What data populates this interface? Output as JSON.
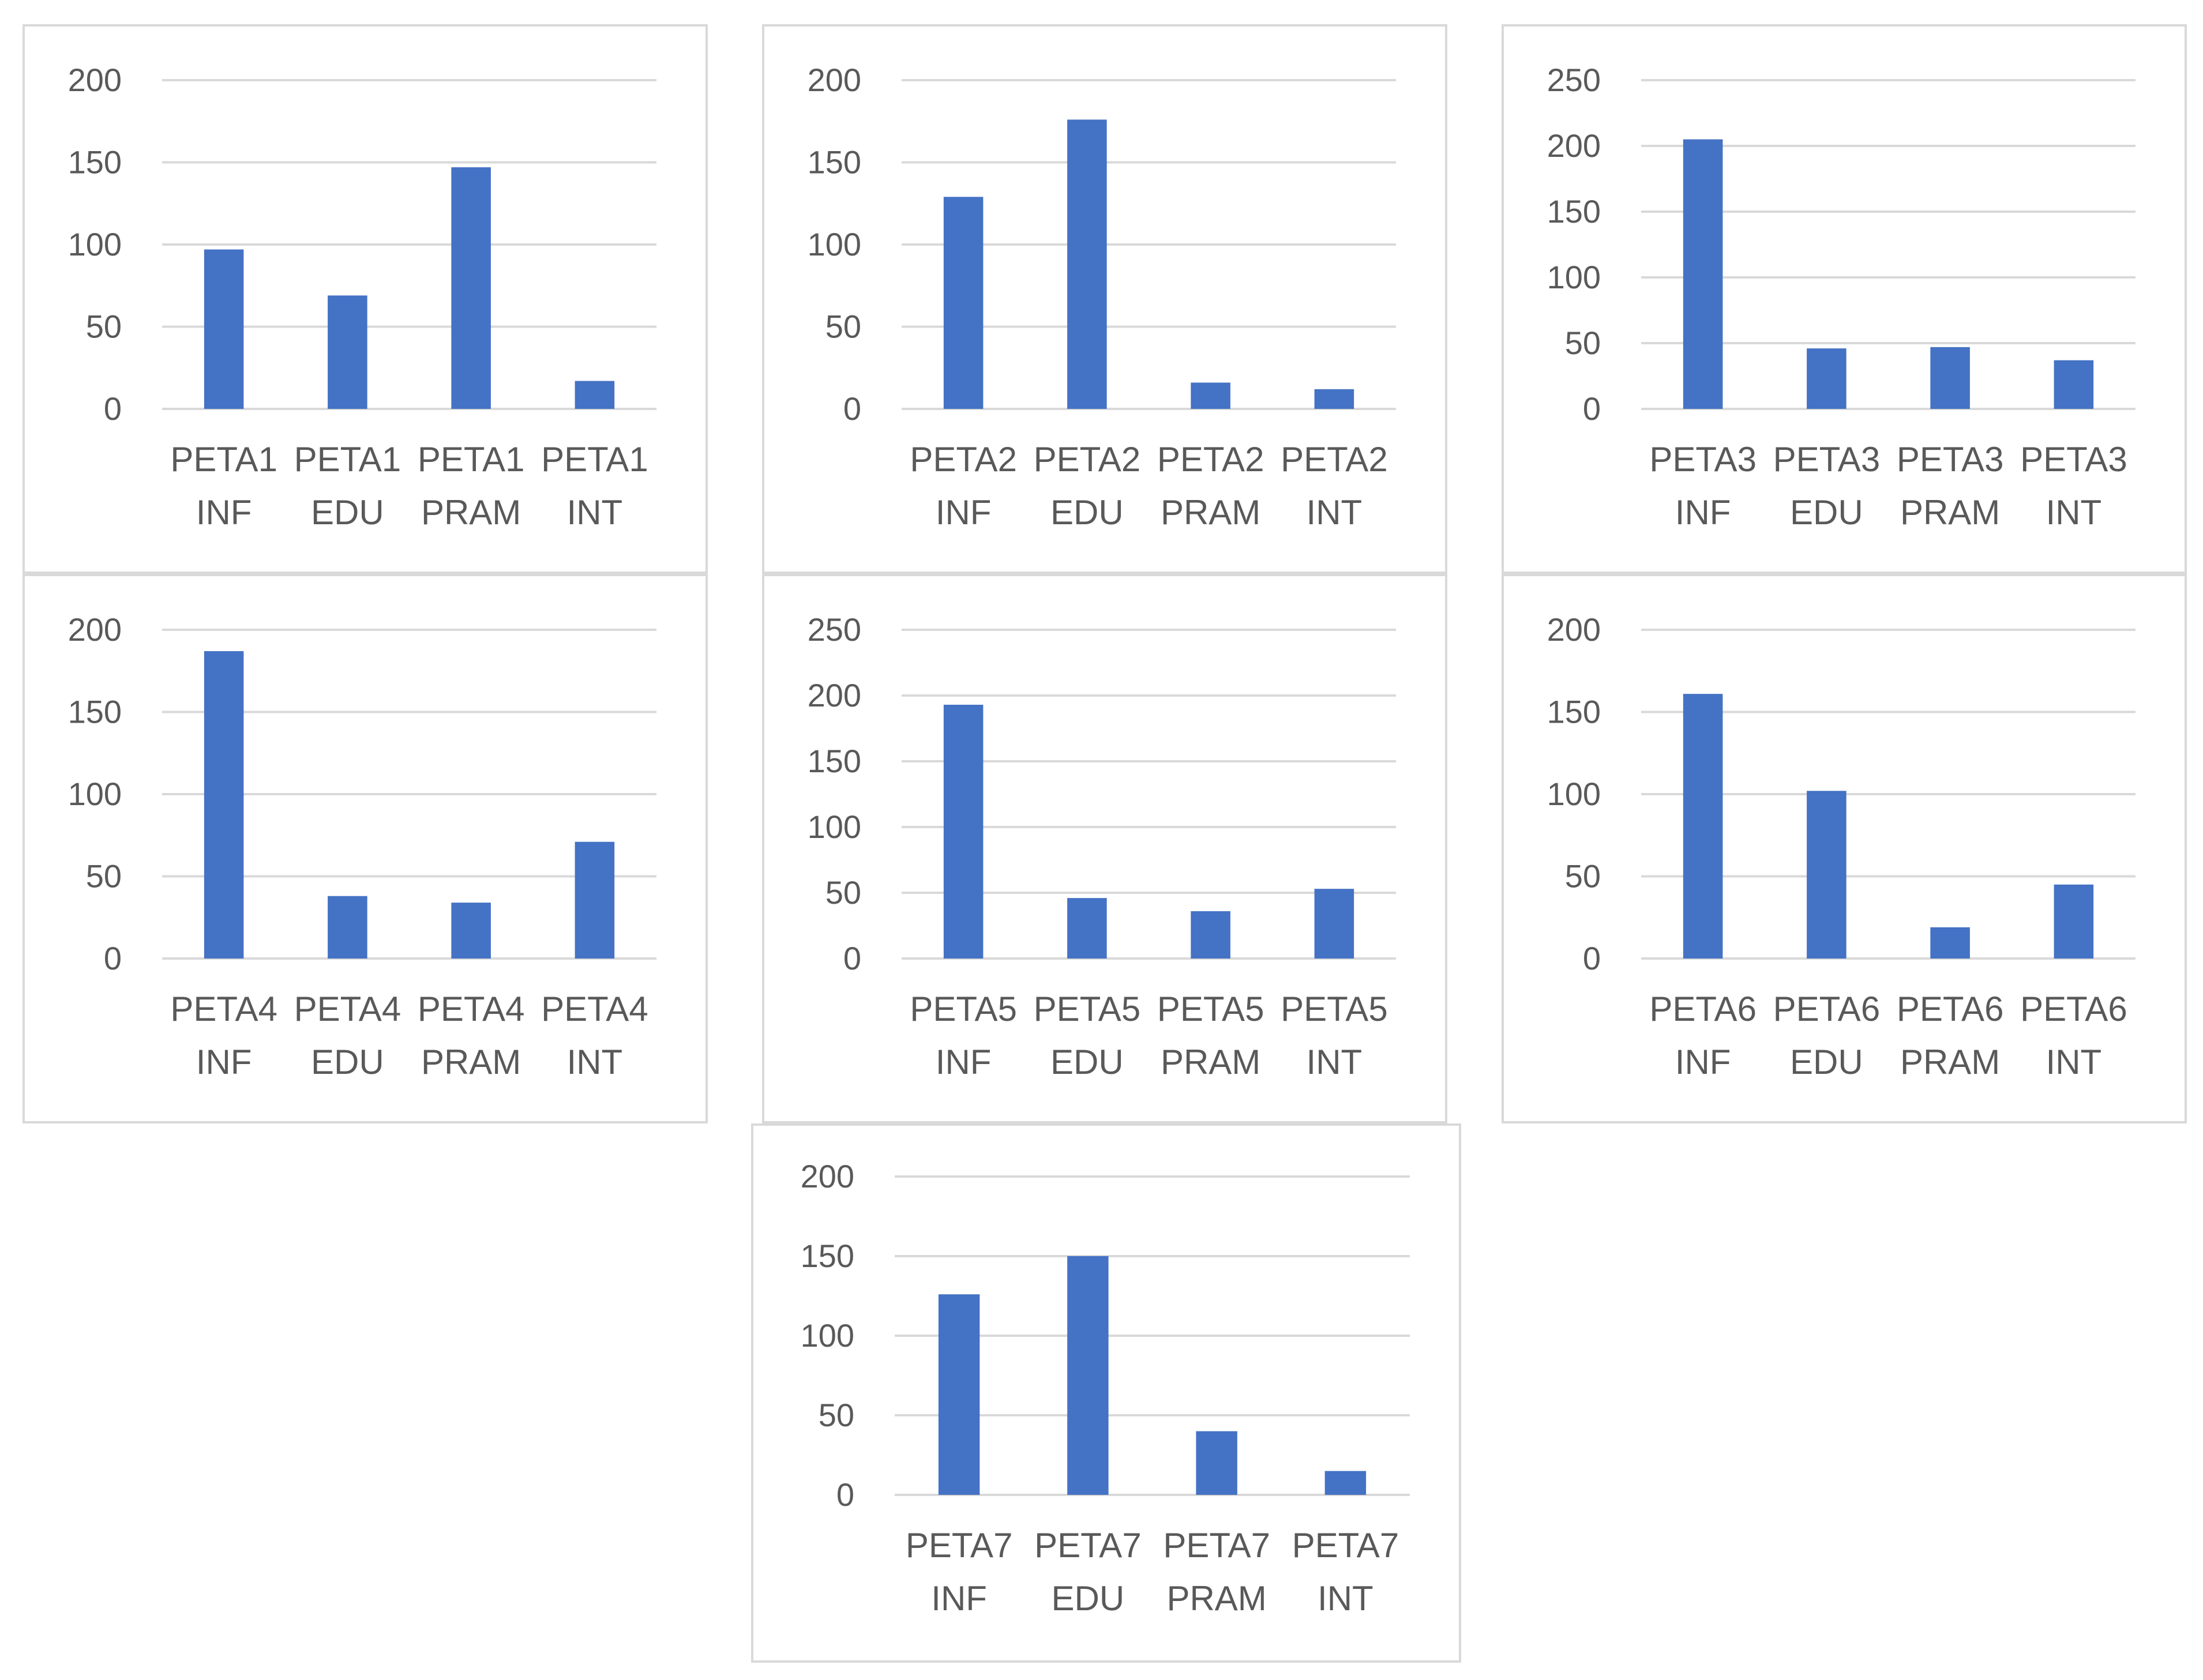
{
  "bar_color": "#4472c4",
  "grid_color": "#d9d9d9",
  "text_color": "#595959",
  "chart_data": [
    {
      "type": "bar",
      "categories": [
        [
          "PETA1",
          "INF"
        ],
        [
          "PETA1",
          "EDU"
        ],
        [
          "PETA1",
          "PRAM"
        ],
        [
          "PETA1",
          "INT"
        ]
      ],
      "values": [
        97,
        69,
        147,
        17
      ],
      "ylim": [
        0,
        200
      ],
      "yticks": [
        0,
        50,
        100,
        150,
        200
      ],
      "grid": true,
      "legend": "none"
    },
    {
      "type": "bar",
      "categories": [
        [
          "PETA2",
          "INF"
        ],
        [
          "PETA2",
          "EDU"
        ],
        [
          "PETA2",
          "PRAM"
        ],
        [
          "PETA2",
          "INT"
        ]
      ],
      "values": [
        129,
        176,
        16,
        12
      ],
      "ylim": [
        0,
        200
      ],
      "yticks": [
        0,
        50,
        100,
        150,
        200
      ],
      "grid": true,
      "legend": "none"
    },
    {
      "type": "bar",
      "categories": [
        [
          "PETA3",
          "INF"
        ],
        [
          "PETA3",
          "EDU"
        ],
        [
          "PETA3",
          "PRAM"
        ],
        [
          "PETA3",
          "INT"
        ]
      ],
      "values": [
        205,
        46,
        47,
        37
      ],
      "ylim": [
        0,
        250
      ],
      "yticks": [
        0,
        50,
        100,
        150,
        200,
        250
      ],
      "grid": true,
      "legend": "none"
    },
    {
      "type": "bar",
      "categories": [
        [
          "PETA4",
          "INF"
        ],
        [
          "PETA4",
          "EDU"
        ],
        [
          "PETA4",
          "PRAM"
        ],
        [
          "PETA4",
          "INT"
        ]
      ],
      "values": [
        187,
        38,
        34,
        71
      ],
      "ylim": [
        0,
        200
      ],
      "yticks": [
        0,
        50,
        100,
        150,
        200
      ],
      "grid": true,
      "legend": "none"
    },
    {
      "type": "bar",
      "categories": [
        [
          "PETA5",
          "INF"
        ],
        [
          "PETA5",
          "EDU"
        ],
        [
          "PETA5",
          "PRAM"
        ],
        [
          "PETA5",
          "INT"
        ]
      ],
      "values": [
        193,
        46,
        36,
        53
      ],
      "ylim": [
        0,
        250
      ],
      "yticks": [
        0,
        50,
        100,
        150,
        200,
        250
      ],
      "grid": true,
      "legend": "none"
    },
    {
      "type": "bar",
      "categories": [
        [
          "PETA6",
          "INF"
        ],
        [
          "PETA6",
          "EDU"
        ],
        [
          "PETA6",
          "PRAM"
        ],
        [
          "PETA6",
          "INT"
        ]
      ],
      "values": [
        161,
        102,
        19,
        45
      ],
      "ylim": [
        0,
        200
      ],
      "yticks": [
        0,
        50,
        100,
        150,
        200
      ],
      "grid": true,
      "legend": "none"
    },
    {
      "type": "bar",
      "categories": [
        [
          "PETA7",
          "INF"
        ],
        [
          "PETA7",
          "EDU"
        ],
        [
          "PETA7",
          "PRAM"
        ],
        [
          "PETA7",
          "INT"
        ]
      ],
      "values": [
        126,
        150,
        40,
        15
      ],
      "ylim": [
        0,
        200
      ],
      "yticks": [
        0,
        50,
        100,
        150,
        200
      ],
      "grid": true,
      "legend": "none"
    }
  ]
}
